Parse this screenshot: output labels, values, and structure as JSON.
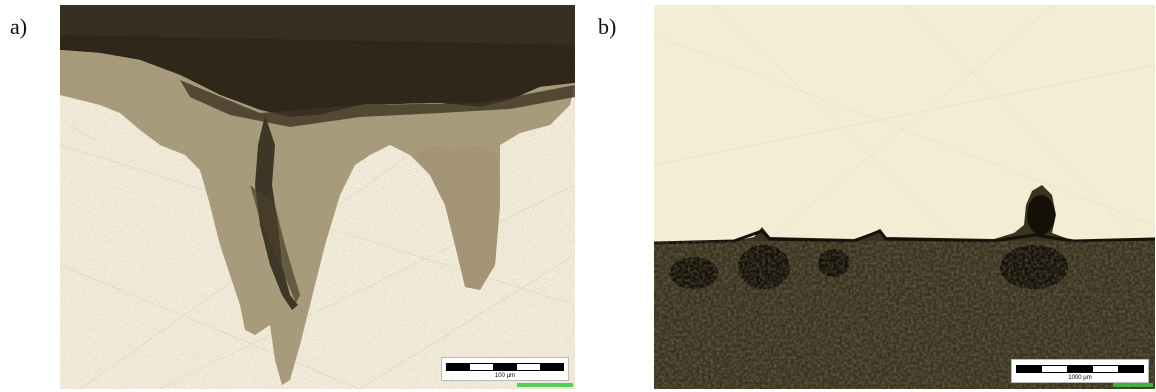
{
  "panels": [
    {
      "label": "a)",
      "image_name": "micrograph-a",
      "scale_label": "100 µm"
    },
    {
      "label": "b)",
      "image_name": "micrograph-b",
      "scale_label": "1000 µm"
    }
  ],
  "colors": {
    "metal_a": "#f2ebda",
    "layer_a": "#a89a7a",
    "dark_a": "#2a2418",
    "metal_b": "#f4edd6",
    "substrate_b": "#3a3320"
  }
}
